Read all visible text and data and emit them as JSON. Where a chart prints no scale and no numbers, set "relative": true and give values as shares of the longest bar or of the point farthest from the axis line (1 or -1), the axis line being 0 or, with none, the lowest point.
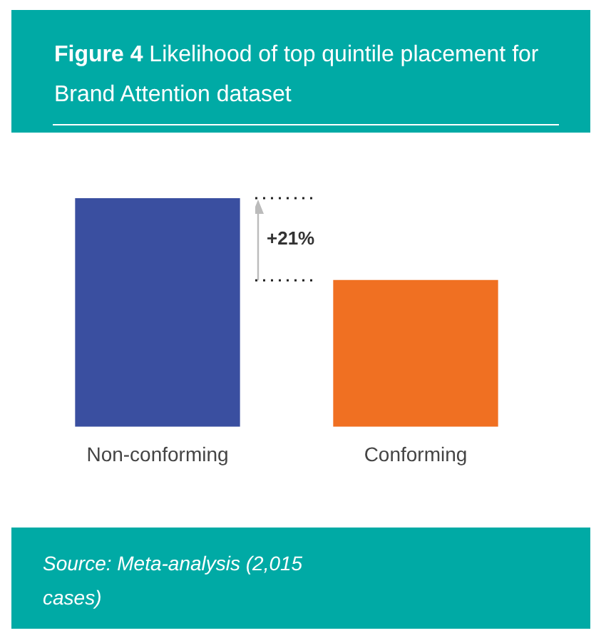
{
  "chart_data": {
    "type": "bar",
    "title": "Figure 4 Likelihood of top quintile placement for Brand Attention dataset",
    "categories": [
      "Non-conforming",
      "Conforming"
    ],
    "values": [
      1,
      0.64
    ],
    "colors": [
      "#3a4fa0",
      "#f07022"
    ],
    "relative": true,
    "grid": false,
    "legend": false,
    "annotations": [
      "+21%",
      "Source: Meta-analysis (2,015 cases)"
    ]
  }
}
